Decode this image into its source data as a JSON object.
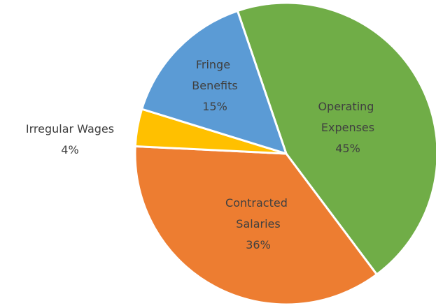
{
  "chart_data": {
    "type": "pie",
    "categories": [
      "Operating Expenses",
      "Contracted Salaries",
      "Irregular Wages",
      "Fringe Benefits"
    ],
    "values": [
      45,
      36,
      4,
      15
    ],
    "value_labels": [
      "45%",
      "36%",
      "4%",
      "15%"
    ],
    "colors": [
      "#70ad47",
      "#ed7d31",
      "#ffc000",
      "#5b9bd5"
    ]
  }
}
